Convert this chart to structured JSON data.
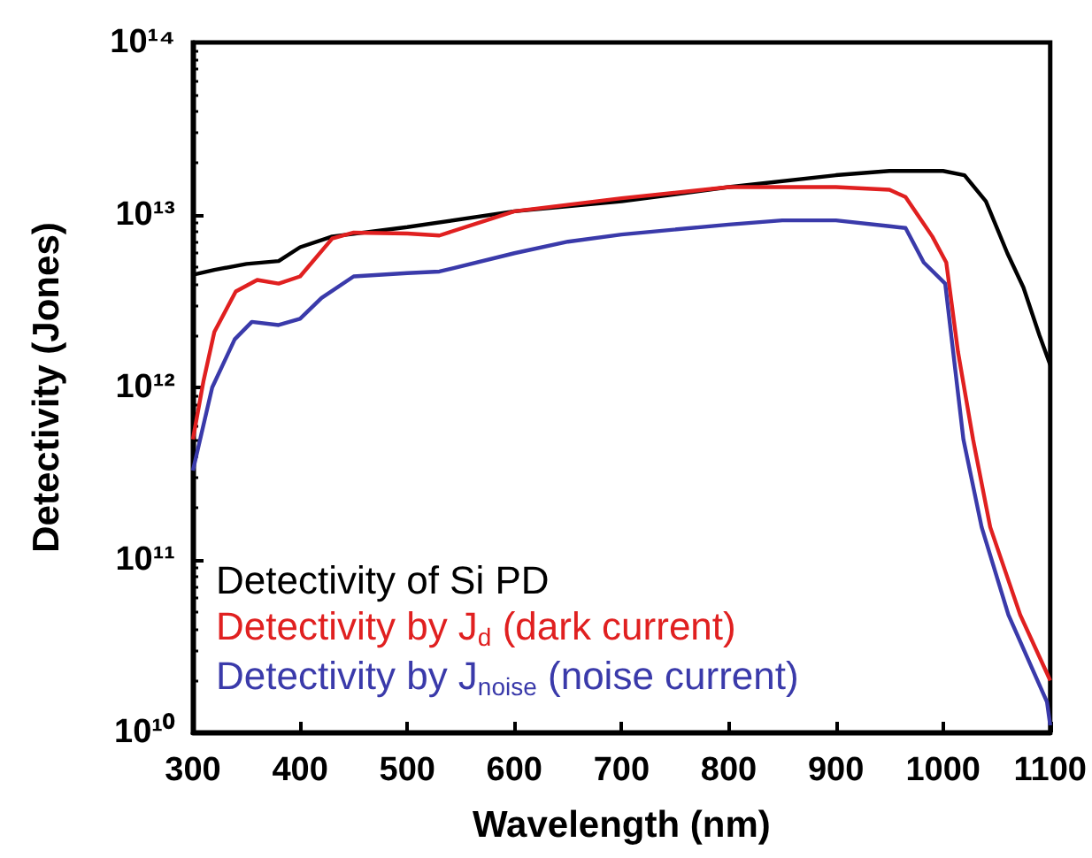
{
  "chart_data": {
    "type": "line",
    "xlabel": "Wavelength (nm)",
    "ylabel": "Detectivity (Jones)",
    "log": "y",
    "xlim": [
      300,
      1100
    ],
    "xticks": [
      300,
      400,
      500,
      600,
      700,
      800,
      900,
      1000,
      1100
    ],
    "ylim": [
      10000000000.0,
      100000000000000.0
    ],
    "yticks": [
      {
        "value": 10000000000.0,
        "label": "10¹⁰"
      },
      {
        "value": 100000000000.0,
        "label": "10¹¹"
      },
      {
        "value": 1000000000000.0,
        "label": "10¹²"
      },
      {
        "value": 10000000000000.0,
        "label": "10¹³"
      },
      {
        "value": 100000000000000.0,
        "label": "10¹⁴"
      }
    ],
    "grid": false,
    "legend": "bottom left",
    "marker": "none",
    "line_style": "solid",
    "series": [
      {
        "name": "Detectivity of Si PD",
        "color": "#000000",
        "x": [
          300,
          320,
          350,
          380,
          400,
          430,
          500,
          600,
          700,
          800,
          900,
          950,
          1000,
          1020,
          1040,
          1060,
          1075,
          1090,
          1100
        ],
        "values": [
          4500000000000.0,
          4800000000000.0,
          5200000000000.0,
          5400000000000.0,
          6500000000000.0,
          7500000000000.0,
          8500000000000.0,
          10500000000000.0,
          12000000000000.0,
          14500000000000.0,
          17000000000000.0,
          18000000000000.0,
          18000000000000.0,
          17000000000000.0,
          12000000000000.0,
          6000000000000.0,
          3800000000000.0,
          2000000000000.0,
          1350000000000.0
        ]
      },
      {
        "name": "Detectivity by J$_{d}$ (dark current)",
        "color": "#e02020",
        "x": [
          300,
          310,
          320,
          340,
          360,
          380,
          400,
          430,
          450,
          500,
          530,
          600,
          700,
          800,
          900,
          950,
          965,
          990,
          1003,
          1014,
          1028,
          1044,
          1072,
          1097,
          1100
        ],
        "values": [
          500000000000.0,
          1100000000000.0,
          2100000000000.0,
          3600000000000.0,
          4200000000000.0,
          4000000000000.0,
          4400000000000.0,
          7300000000000.0,
          7900000000000.0,
          7800000000000.0,
          7600000000000.0,
          10500000000000.0,
          12500000000000.0,
          14500000000000.0,
          14500000000000.0,
          14000000000000.0,
          12700000000000.0,
          7500000000000.0,
          5300000000000.0,
          1600000000000.0,
          500000000000.0,
          155000000000.0,
          48000000000.0,
          22000000000.0,
          20000000000.0
        ]
      },
      {
        "name": "Detectivity by J$_{noise}$ (noise current)",
        "color": "#3a3aaa",
        "x": [
          300,
          318,
          339,
          355,
          380,
          400,
          420,
          450,
          500,
          530,
          600,
          650,
          700,
          800,
          850,
          900,
          950,
          965,
          982,
          1002,
          1019,
          1036,
          1061,
          1097,
          1100
        ],
        "values": [
          330000000000.0,
          1000000000000.0,
          1900000000000.0,
          2400000000000.0,
          2300000000000.0,
          2500000000000.0,
          3300000000000.0,
          4400000000000.0,
          4600000000000.0,
          4700000000000.0,
          6000000000000.0,
          7000000000000.0,
          7700000000000.0,
          8800000000000.0,
          9300000000000.0,
          9300000000000.0,
          8600000000000.0,
          8400000000000.0,
          5300000000000.0,
          4000000000000.0,
          500000000000.0,
          155000000000.0,
          48000000000.0,
          15000000000.0,
          11000000000.0
        ]
      }
    ]
  }
}
